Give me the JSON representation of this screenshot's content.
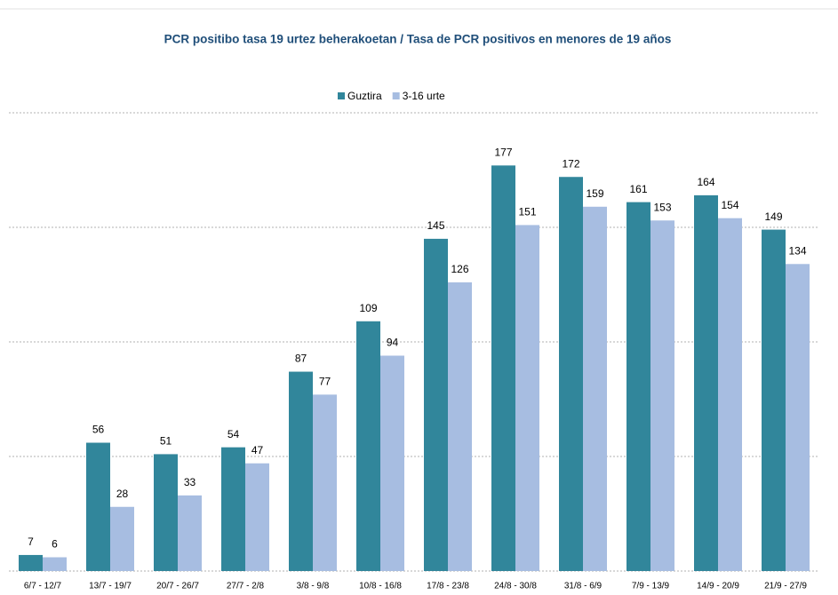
{
  "chart_data": {
    "type": "bar",
    "title": "PCR positibo tasa 19 urtez beherakoetan / Tasa de PCR positivos en menores de 19 años",
    "categories": [
      "6/7 - 12/7",
      "13/7 - 19/7",
      "20/7 - 26/7",
      "27/7 - 2/8",
      "3/8 - 9/8",
      "10/8 - 16/8",
      "17/8 - 23/8",
      "24/8 - 30/8",
      "31/8 - 6/9",
      "7/9 - 13/9",
      "14/9 - 20/9",
      "21/9 - 27/9"
    ],
    "series": [
      {
        "name": "Guztira",
        "color": "#31869b",
        "values": [
          7,
          56,
          51,
          54,
          87,
          109,
          145,
          177,
          172,
          161,
          164,
          149
        ]
      },
      {
        "name": "3-16 urte",
        "color": "#a7bde1",
        "values": [
          6,
          28,
          33,
          47,
          77,
          94,
          126,
          151,
          159,
          153,
          154,
          134
        ]
      }
    ],
    "ylim": [
      0,
      200
    ],
    "yticks": [
      0,
      50,
      100,
      150,
      200
    ],
    "grid": true,
    "legend": "top"
  }
}
